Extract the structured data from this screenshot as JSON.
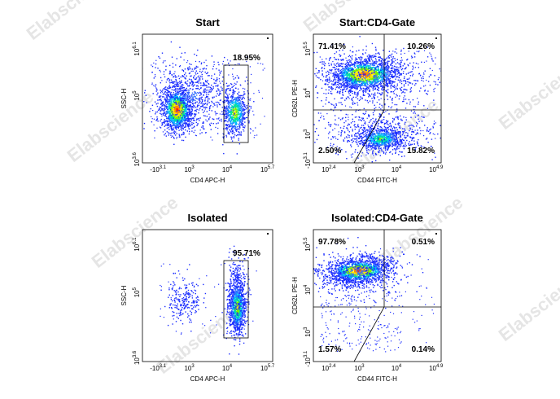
{
  "watermark": "Elabscience",
  "chart_data": [
    {
      "type": "scatter",
      "title": "Start",
      "xlabel": "CD4 APC-H",
      "ylabel": "SSC-H",
      "x_ticks": [
        {
          "base": "-10",
          "exp": "3.1"
        },
        {
          "base": "10",
          "exp": "3"
        },
        {
          "base": "10",
          "exp": "4"
        },
        {
          "base": "10",
          "exp": "5.7"
        }
      ],
      "y_ticks": [
        {
          "base": "10",
          "exp": "3.6"
        },
        {
          "base": "10",
          "exp": "5"
        },
        {
          "base": "10",
          "exp": "6.1"
        }
      ],
      "populations": [
        {
          "name": "",
          "x_log": 3.0,
          "y_log": 4.85,
          "spread": "large",
          "peak": "red"
        },
        {
          "name": "",
          "x_log": 4.3,
          "y_log": 4.85,
          "spread": "medium",
          "peak": "green"
        }
      ],
      "gates": [
        {
          "label": "18.95%",
          "value": 18.95
        }
      ]
    },
    {
      "type": "scatter",
      "title": "Start:CD4-Gate",
      "xlabel": "CD44 FITC-H",
      "ylabel": "CD62L PE-H",
      "x_ticks": [
        {
          "base": "10",
          "exp": "2.4"
        },
        {
          "base": "10",
          "exp": "3"
        },
        {
          "base": "10",
          "exp": "4"
        },
        {
          "base": "10",
          "exp": "4.9"
        }
      ],
      "y_ticks": [
        {
          "base": "-10",
          "exp": "3.1"
        },
        {
          "base": "10",
          "exp": "3"
        },
        {
          "base": "10",
          "exp": "4"
        },
        {
          "base": "10",
          "exp": "5.5"
        }
      ],
      "quadrants": [
        {
          "position": "top-left",
          "label": "71.41%",
          "value": 71.41
        },
        {
          "position": "top-right",
          "label": "10.26%",
          "value": 10.26
        },
        {
          "position": "bottom-left",
          "label": "2.50%",
          "value": 2.5
        },
        {
          "position": "bottom-right",
          "label": "15.82%",
          "value": 15.82
        }
      ]
    },
    {
      "type": "scatter",
      "title": "Isolated",
      "xlabel": "CD4 APC-H",
      "ylabel": "SSC-H",
      "x_ticks": [
        {
          "base": "-10",
          "exp": "3.1"
        },
        {
          "base": "10",
          "exp": "3"
        },
        {
          "base": "10",
          "exp": "4"
        },
        {
          "base": "10",
          "exp": "5.7"
        }
      ],
      "y_ticks": [
        {
          "base": "10",
          "exp": "3.6"
        },
        {
          "base": "10",
          "exp": "5"
        },
        {
          "base": "10",
          "exp": "6.1"
        }
      ],
      "populations": [
        {
          "name": "",
          "x_log": 3.0,
          "y_log": 4.8,
          "spread": "sparse",
          "peak": "blue"
        },
        {
          "name": "",
          "x_log": 4.3,
          "y_log": 4.8,
          "spread": "medium",
          "peak": "green"
        }
      ],
      "gates": [
        {
          "label": "95.71%",
          "value": 95.71
        }
      ]
    },
    {
      "type": "scatter",
      "title": "Isolated:CD4-Gate",
      "xlabel": "CD44 FITC-H",
      "ylabel": "CD62L PE-H",
      "x_ticks": [
        {
          "base": "10",
          "exp": "2.4"
        },
        {
          "base": "10",
          "exp": "3"
        },
        {
          "base": "10",
          "exp": "4"
        },
        {
          "base": "10",
          "exp": "4.9"
        }
      ],
      "y_ticks": [
        {
          "base": "-10",
          "exp": "3.1"
        },
        {
          "base": "10",
          "exp": "3"
        },
        {
          "base": "10",
          "exp": "4"
        },
        {
          "base": "10",
          "exp": "5.5"
        }
      ],
      "quadrants": [
        {
          "position": "top-left",
          "label": "97.78%",
          "value": 97.78
        },
        {
          "position": "top-right",
          "label": "0.51%",
          "value": 0.51
        },
        {
          "position": "bottom-left",
          "label": "1.57%",
          "value": 1.57
        },
        {
          "position": "bottom-right",
          "label": "0.14%",
          "value": 0.14
        }
      ]
    }
  ]
}
